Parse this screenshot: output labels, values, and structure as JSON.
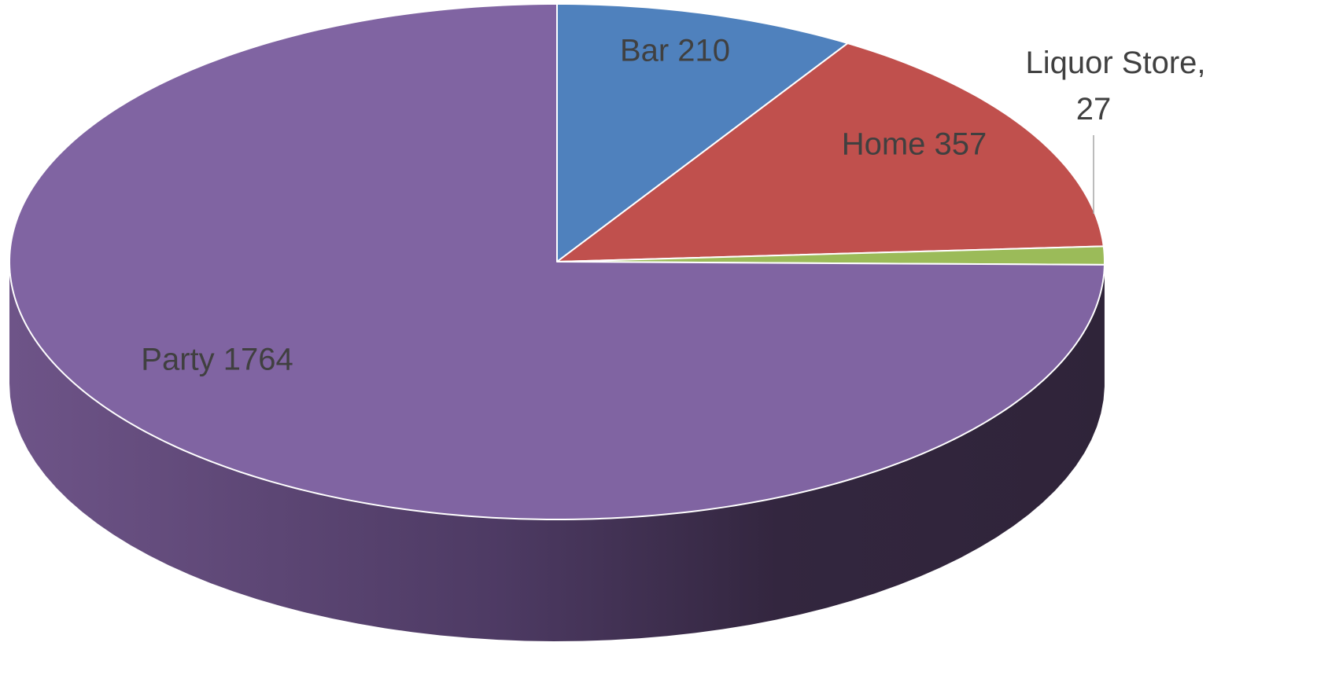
{
  "chart_data": {
    "type": "pie3d",
    "values": [
      210,
      357,
      27,
      1764
    ],
    "value_labels": [
      "Bar 210",
      "Home 357",
      "Liquor Store, 27",
      "Party 1764"
    ],
    "colors": [
      "#4f81bd",
      "#c0504d",
      "#9bbb59",
      "#8064a2"
    ]
  }
}
